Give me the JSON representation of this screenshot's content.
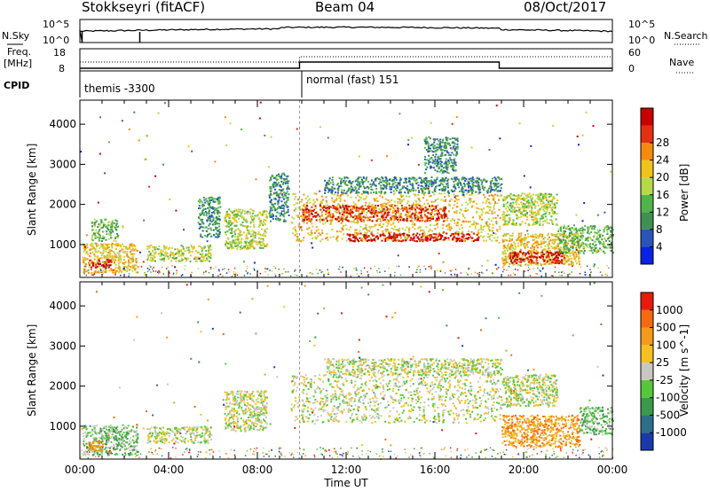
{
  "header": {
    "station": "Stokkseyri (fitACF)",
    "beam": "Beam 04",
    "date": "08/Oct/2017"
  },
  "labels": {
    "nsky": "N.Sky",
    "nsearch": "N.Search",
    "freq": "Freq.",
    "freq_unit": "[MHz]",
    "nave": "Nave",
    "cpid": "CPID",
    "nsky_tick_top": "10^5",
    "nsky_tick_bottom": "10^0",
    "nsearch_tick_top": "10^5",
    "nsearch_tick_bottom": "10^0",
    "freq_tick_top": "18",
    "freq_tick_bottom": "8",
    "nave_tick_top": "60",
    "nave_tick_bottom": "0"
  },
  "cpid_modes": [
    {
      "label": "themis -3300",
      "start_hour": 0
    },
    {
      "label": "normal (fast) 151",
      "start_hour": 9.9
    }
  ],
  "chart_data": [
    {
      "type": "heatmap",
      "name": "power-panel",
      "ylabel": "Slant Range [km]",
      "xlabel": "",
      "xlim": [
        0,
        24
      ],
      "ylim": [
        180,
        4600
      ],
      "x_ticks": [
        "00:00",
        "04:00",
        "08:00",
        "12:00",
        "16:00",
        "20:00",
        "00:00"
      ],
      "y_ticks": [
        1000,
        2000,
        3000,
        4000
      ],
      "colorbar": {
        "label": "Power [dB]",
        "ticks": [
          "4",
          "8",
          "12",
          "16",
          "20",
          "24",
          "28"
        ],
        "colors": [
          "#0a22e6",
          "#2a55b8",
          "#3f8f52",
          "#4fb54a",
          "#b8d84a",
          "#f0c21c",
          "#f58a0e",
          "#e43010",
          "#c80000"
        ]
      },
      "scatter_regions": [
        {
          "t0": 0.1,
          "t1": 2.6,
          "r0": 300,
          "r1": 1050,
          "level": 5
        },
        {
          "t0": 0.4,
          "t1": 1.4,
          "r0": 450,
          "r1": 650,
          "level": 8
        },
        {
          "t0": 0.5,
          "t1": 1.7,
          "r0": 1100,
          "r1": 1650,
          "level": 3
        },
        {
          "t0": 3.0,
          "t1": 5.9,
          "r0": 600,
          "r1": 1000,
          "level": 4
        },
        {
          "t0": 5.3,
          "t1": 6.3,
          "r0": 1200,
          "r1": 2200,
          "level": 2
        },
        {
          "t0": 6.5,
          "t1": 8.4,
          "r0": 900,
          "r1": 1900,
          "level": 4
        },
        {
          "t0": 8.5,
          "t1": 9.4,
          "r0": 1600,
          "r1": 2800,
          "level": 2
        },
        {
          "t0": 9.5,
          "t1": 19.0,
          "r0": 1100,
          "r1": 2300,
          "level": 5
        },
        {
          "t0": 10.0,
          "t1": 16.5,
          "r0": 1600,
          "r1": 2000,
          "level": 7
        },
        {
          "t0": 12.0,
          "t1": 18.0,
          "r0": 1100,
          "r1": 1300,
          "level": 8
        },
        {
          "t0": 11.0,
          "t1": 19.0,
          "r0": 2300,
          "r1": 2700,
          "level": 2
        },
        {
          "t0": 15.5,
          "t1": 17.0,
          "r0": 2800,
          "r1": 3700,
          "level": 2
        },
        {
          "t0": 19.0,
          "t1": 22.5,
          "r0": 500,
          "r1": 1300,
          "level": 5
        },
        {
          "t0": 19.3,
          "t1": 21.8,
          "r0": 550,
          "r1": 850,
          "level": 8
        },
        {
          "t0": 19.0,
          "t1": 21.5,
          "r0": 1500,
          "r1": 2300,
          "level": 4
        },
        {
          "t0": 21.5,
          "t1": 24.0,
          "r0": 800,
          "r1": 1500,
          "level": 3
        }
      ]
    },
    {
      "type": "heatmap",
      "name": "velocity-panel",
      "ylabel": "Slant Range [km]",
      "xlabel": "Time UT",
      "xlim": [
        0,
        24
      ],
      "ylim": [
        180,
        4600
      ],
      "x_ticks": [
        "00:00",
        "04:00",
        "08:00",
        "12:00",
        "16:00",
        "20:00",
        "00:00"
      ],
      "y_ticks": [
        1000,
        2000,
        3000,
        4000
      ],
      "colorbar": {
        "label": "Velocity [m s^-1]",
        "ticks": [
          "1000",
          "500",
          "100",
          "25",
          "-25",
          "-100",
          "-500",
          "-1000"
        ],
        "colors": [
          "#1a3aa8",
          "#2e6e8a",
          "#3a9a4a",
          "#55c83a",
          "#c8c8c0",
          "#f5c020",
          "#f59a18",
          "#f56a10",
          "#e81a0a"
        ]
      },
      "scatter_regions": [
        {
          "t0": 0.1,
          "t1": 2.6,
          "r0": 300,
          "r1": 1050,
          "level": 3
        },
        {
          "t0": 0.3,
          "t1": 1.0,
          "r0": 400,
          "r1": 650,
          "level": 6
        },
        {
          "t0": 3.0,
          "t1": 5.9,
          "r0": 600,
          "r1": 1000,
          "level": 4
        },
        {
          "t0": 6.5,
          "t1": 8.4,
          "r0": 900,
          "r1": 1900,
          "level": 4
        },
        {
          "t0": 9.5,
          "t1": 19.0,
          "r0": 1100,
          "r1": 2300,
          "level": 4
        },
        {
          "t0": 11.0,
          "t1": 19.0,
          "r0": 2300,
          "r1": 2700,
          "level": 4
        },
        {
          "t0": 19.0,
          "t1": 22.5,
          "r0": 500,
          "r1": 1300,
          "level": 6
        },
        {
          "t0": 19.0,
          "t1": 21.5,
          "r0": 1500,
          "r1": 2300,
          "level": 4
        },
        {
          "t0": 22.5,
          "t1": 24.0,
          "r0": 800,
          "r1": 1500,
          "level": 3
        }
      ]
    }
  ]
}
